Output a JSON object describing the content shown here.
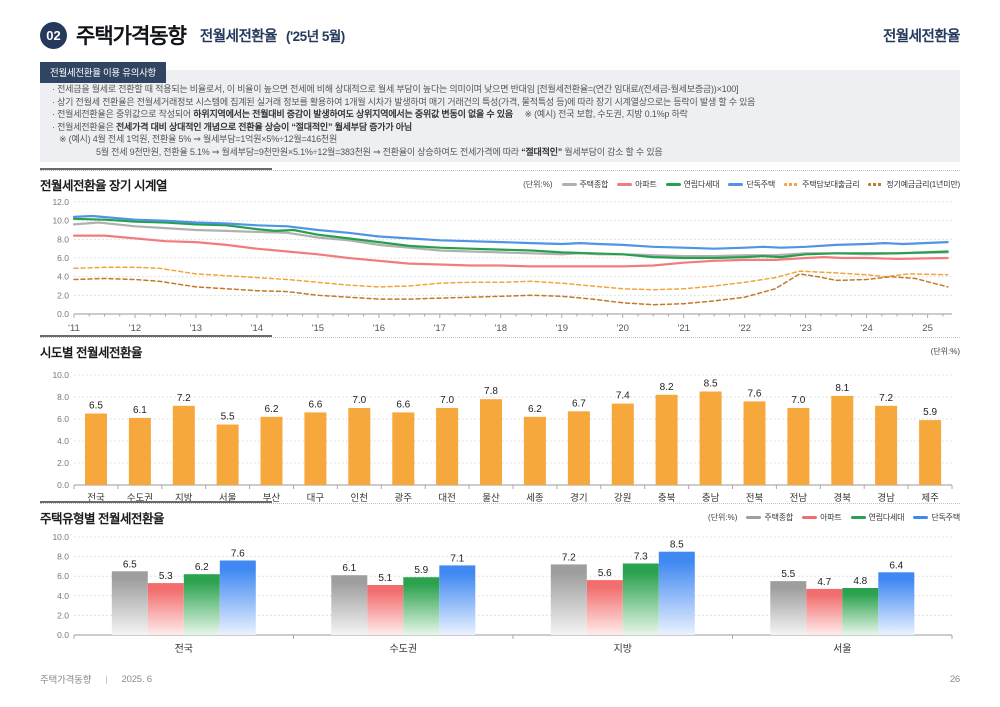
{
  "header": {
    "number": "02",
    "title": "주택가격동향",
    "subtitle": "전월세전환율",
    "period": "('25년 5월)",
    "right_title": "전월세전환율"
  },
  "notice": {
    "tab": "전월세전환율 이용 유의사항",
    "lines": [
      {
        "indent": 0,
        "segments": [
          {
            "t": "· 전세금을 월세로 전환할 때 적용되는 비율로서, 이 비율이 높으면 전세에 비해 상대적으로 월세 부담이 높다는 의미이며 낮으면 반대임 [전월세전환율=(연간 임대료/(전세금-월세보증금))×100]",
            "b": false
          }
        ]
      },
      {
        "indent": 0,
        "segments": [
          {
            "t": "· 상기 전월세 전환율은 전월세거래정보 시스템에 집계된 실거래 정보를 활용하여 1개월 시차가 발생하며 매기 거래건의 특성(가격, 물적특성 등)에 따라 장기 시계열상으로는 등락이 발생 할 수 있음",
            "b": false
          }
        ]
      },
      {
        "indent": 0,
        "segments": [
          {
            "t": "· 전월세전환율은 중위값으로 작성되어 ",
            "b": false
          },
          {
            "t": "하위지역에서는 전월대비 증감이 발생하여도 상위지역에서는 중위값 변동이 없을 수 있음",
            "b": true
          },
          {
            "t": "     ※ (예시) 전국 보합, 수도권, 지방 0.1%p 하락",
            "b": false
          }
        ]
      },
      {
        "indent": 0,
        "segments": [
          {
            "t": "· 전월세전환율은 ",
            "b": false
          },
          {
            "t": "전세가격 대비 상대적인 개념으로 전환율 상승이 “절대적인” 월세부담 증가가 아님",
            "b": true
          }
        ]
      },
      {
        "indent": 1,
        "segments": [
          {
            "t": "※ (예시) 4월 전세 1억원, 전환율 5% ⇒ 월세부담=1억원×5%÷12월=416천원",
            "b": false
          }
        ]
      },
      {
        "indent": 2,
        "segments": [
          {
            "t": "5월 전세 9천만원, 전환율 5.1% ⇒ 월세부담=9천만원×5.1%÷12월=383천원 ⇒ 전환율이 상승하여도 전세가격에 따라 ",
            "b": false
          },
          {
            "t": "“절대적인”",
            "b": true
          },
          {
            "t": " 월세부담이 감소 할 수 있음",
            "b": false
          }
        ]
      }
    ]
  },
  "chart_data": [
    {
      "type": "line",
      "title": "전월세전환율 장기 시계열",
      "unit_label": "(단위:%)",
      "ylim": [
        0,
        12
      ],
      "y_step": 2,
      "x_ticks": [
        "'11",
        "'12",
        "'13",
        "'14",
        "'15",
        "'16",
        "'17",
        "'18",
        "'19",
        "'20",
        "'21",
        "'22",
        "'23",
        "'24",
        "25"
      ],
      "series": [
        {
          "name": "주택종합",
          "color": "#b0b0b0",
          "style": "solid",
          "points": [
            [
              2011,
              9.6
            ],
            [
              2011.4,
              9.8
            ],
            [
              2012,
              9.4
            ],
            [
              2012.5,
              9.2
            ],
            [
              2013,
              9.0
            ],
            [
              2013.5,
              8.9
            ],
            [
              2014,
              8.8
            ],
            [
              2014.5,
              8.7
            ],
            [
              2015,
              8.2
            ],
            [
              2015.5,
              7.9
            ],
            [
              2016,
              7.4
            ],
            [
              2016.5,
              7.1
            ],
            [
              2017,
              6.8
            ],
            [
              2017.5,
              6.7
            ],
            [
              2018,
              6.6
            ],
            [
              2018.5,
              6.5
            ],
            [
              2019,
              6.4
            ],
            [
              2019.3,
              6.5
            ],
            [
              2019.6,
              6.4
            ],
            [
              2020,
              6.4
            ],
            [
              2020.5,
              6.3
            ],
            [
              2021,
              6.2
            ],
            [
              2021.5,
              6.2
            ],
            [
              2022,
              6.3
            ],
            [
              2022.5,
              6.3
            ],
            [
              2023,
              6.5
            ],
            [
              2023.5,
              6.5
            ],
            [
              2024,
              6.4
            ],
            [
              2024.5,
              6.5
            ],
            [
              2025.33,
              6.6
            ]
          ]
        },
        {
          "name": "아파트",
          "color": "#f27c7c",
          "style": "solid",
          "points": [
            [
              2011,
              8.4
            ],
            [
              2011.5,
              8.4
            ],
            [
              2012,
              8.1
            ],
            [
              2012.5,
              7.8
            ],
            [
              2013,
              7.7
            ],
            [
              2013.5,
              7.4
            ],
            [
              2014,
              7.0
            ],
            [
              2014.5,
              6.7
            ],
            [
              2015,
              6.4
            ],
            [
              2015.5,
              6.0
            ],
            [
              2016,
              5.7
            ],
            [
              2016.5,
              5.4
            ],
            [
              2017,
              5.3
            ],
            [
              2017.5,
              5.2
            ],
            [
              2018,
              5.2
            ],
            [
              2018.5,
              5.1
            ],
            [
              2019,
              5.1
            ],
            [
              2019.5,
              5.1
            ],
            [
              2020,
              5.1
            ],
            [
              2020.5,
              5.2
            ],
            [
              2021,
              5.5
            ],
            [
              2021.5,
              5.7
            ],
            [
              2022,
              5.8
            ],
            [
              2022.5,
              5.8
            ],
            [
              2023,
              6.0
            ],
            [
              2023.3,
              6.1
            ],
            [
              2023.6,
              6.0
            ],
            [
              2024,
              6.0
            ],
            [
              2024.5,
              5.9
            ],
            [
              2025.33,
              6.0
            ]
          ]
        },
        {
          "name": "연립다세대",
          "color": "#27a04e",
          "style": "solid",
          "points": [
            [
              2011,
              10.2
            ],
            [
              2011.5,
              10.1
            ],
            [
              2012,
              9.9
            ],
            [
              2012.5,
              9.8
            ],
            [
              2013,
              9.6
            ],
            [
              2013.5,
              9.5
            ],
            [
              2014,
              9.1
            ],
            [
              2014.3,
              8.9
            ],
            [
              2014.6,
              9.0
            ],
            [
              2015,
              8.5
            ],
            [
              2015.5,
              8.1
            ],
            [
              2016,
              7.7
            ],
            [
              2016.5,
              7.3
            ],
            [
              2017,
              7.1
            ],
            [
              2017.5,
              7.0
            ],
            [
              2018,
              6.9
            ],
            [
              2018.5,
              6.8
            ],
            [
              2019,
              6.6
            ],
            [
              2019.5,
              6.5
            ],
            [
              2020,
              6.4
            ],
            [
              2020.5,
              6.1
            ],
            [
              2021,
              6.0
            ],
            [
              2021.5,
              6.0
            ],
            [
              2022,
              6.1
            ],
            [
              2022.3,
              6.2
            ],
            [
              2022.6,
              6.1
            ],
            [
              2023,
              6.4
            ],
            [
              2023.5,
              6.5
            ],
            [
              2024,
              6.5
            ],
            [
              2024.5,
              6.5
            ],
            [
              2025.33,
              6.7
            ]
          ]
        },
        {
          "name": "단독주택",
          "color": "#4f94e5",
          "style": "solid",
          "points": [
            [
              2011,
              10.4
            ],
            [
              2011.3,
              10.5
            ],
            [
              2012,
              10.1
            ],
            [
              2012.5,
              10.0
            ],
            [
              2013,
              9.8
            ],
            [
              2013.5,
              9.7
            ],
            [
              2014,
              9.5
            ],
            [
              2014.5,
              9.4
            ],
            [
              2015,
              9.0
            ],
            [
              2015.5,
              8.7
            ],
            [
              2016,
              8.3
            ],
            [
              2016.5,
              8.1
            ],
            [
              2017,
              7.9
            ],
            [
              2017.5,
              7.8
            ],
            [
              2018,
              7.7
            ],
            [
              2018.5,
              7.6
            ],
            [
              2019,
              7.5
            ],
            [
              2019.3,
              7.6
            ],
            [
              2019.6,
              7.5
            ],
            [
              2020,
              7.4
            ],
            [
              2020.5,
              7.2
            ],
            [
              2021,
              7.1
            ],
            [
              2021.5,
              7.0
            ],
            [
              2022,
              7.1
            ],
            [
              2022.3,
              7.2
            ],
            [
              2022.6,
              7.1
            ],
            [
              2023,
              7.2
            ],
            [
              2023.5,
              7.4
            ],
            [
              2024,
              7.5
            ],
            [
              2024.3,
              7.6
            ],
            [
              2024.6,
              7.5
            ],
            [
              2025.33,
              7.7
            ]
          ]
        },
        {
          "name": "주택담보대출금리",
          "color": "#f2a53a",
          "style": "dashed",
          "points": [
            [
              2011,
              4.9
            ],
            [
              2011.5,
              5.0
            ],
            [
              2012,
              5.0
            ],
            [
              2012.4,
              4.9
            ],
            [
              2013,
              4.3
            ],
            [
              2013.5,
              4.1
            ],
            [
              2014,
              3.9
            ],
            [
              2014.5,
              3.7
            ],
            [
              2015,
              3.4
            ],
            [
              2015.5,
              3.1
            ],
            [
              2016,
              2.9
            ],
            [
              2016.5,
              3.0
            ],
            [
              2017,
              3.3
            ],
            [
              2017.5,
              3.4
            ],
            [
              2018,
              3.4
            ],
            [
              2018.5,
              3.5
            ],
            [
              2019,
              3.3
            ],
            [
              2019.5,
              3.0
            ],
            [
              2020,
              2.7
            ],
            [
              2020.5,
              2.6
            ],
            [
              2021,
              2.7
            ],
            [
              2021.5,
              3.0
            ],
            [
              2022,
              3.4
            ],
            [
              2022.5,
              3.9
            ],
            [
              2022.9,
              4.6
            ],
            [
              2023.2,
              4.5
            ],
            [
              2023.5,
              4.4
            ],
            [
              2024,
              4.2
            ],
            [
              2024.3,
              4.0
            ],
            [
              2024.7,
              4.3
            ],
            [
              2025.33,
              4.2
            ]
          ]
        },
        {
          "name": "정기예금금리(1년미만)",
          "color": "#c07a28",
          "style": "dashed",
          "points": [
            [
              2011,
              3.7
            ],
            [
              2011.5,
              3.8
            ],
            [
              2012,
              3.7
            ],
            [
              2012.4,
              3.5
            ],
            [
              2013,
              2.9
            ],
            [
              2013.5,
              2.7
            ],
            [
              2014,
              2.5
            ],
            [
              2014.5,
              2.4
            ],
            [
              2015,
              2.0
            ],
            [
              2015.5,
              1.8
            ],
            [
              2016,
              1.6
            ],
            [
              2016.5,
              1.6
            ],
            [
              2017,
              1.7
            ],
            [
              2017.5,
              1.8
            ],
            [
              2018,
              1.9
            ],
            [
              2018.5,
              2.0
            ],
            [
              2019,
              1.9
            ],
            [
              2019.5,
              1.6
            ],
            [
              2020,
              1.2
            ],
            [
              2020.5,
              1.0
            ],
            [
              2021,
              1.1
            ],
            [
              2021.5,
              1.4
            ],
            [
              2022,
              1.8
            ],
            [
              2022.5,
              2.7
            ],
            [
              2022.9,
              4.3
            ],
            [
              2023.2,
              4.0
            ],
            [
              2023.5,
              3.6
            ],
            [
              2024,
              3.7
            ],
            [
              2024.4,
              4.0
            ],
            [
              2024.8,
              3.8
            ],
            [
              2025.33,
              2.9
            ]
          ]
        }
      ]
    },
    {
      "type": "bar",
      "title": "시도별 전월세전환율",
      "unit_label": "(단위:%)",
      "ylim": [
        0,
        10
      ],
      "y_step": 2,
      "bar_color": "#f7a83c",
      "categories": [
        "전국",
        "수도권",
        "지방",
        "서울",
        "부산",
        "대구",
        "인천",
        "광주",
        "대전",
        "울산",
        "세종",
        "경기",
        "강원",
        "충북",
        "충남",
        "전북",
        "전남",
        "경북",
        "경남",
        "제주"
      ],
      "values": [
        6.5,
        6.1,
        7.2,
        5.5,
        6.2,
        6.6,
        7.0,
        6.6,
        7.0,
        7.8,
        6.2,
        6.7,
        7.4,
        8.2,
        8.5,
        7.6,
        7.0,
        8.1,
        7.2,
        5.9
      ]
    },
    {
      "type": "grouped-bar",
      "title": "주택유형별 전월세전환율",
      "unit_label": "(단위:%)",
      "ylim": [
        0,
        10
      ],
      "y_step": 2,
      "categories": [
        "전국",
        "수도권",
        "지방",
        "서울"
      ],
      "series": [
        {
          "name": "주택종합",
          "color": "#9e9e9e",
          "color_light": "#f4f4f4",
          "values": [
            6.5,
            6.1,
            7.2,
            5.5
          ]
        },
        {
          "name": "아파트",
          "color": "#f26d6d",
          "color_light": "#ffecec",
          "values": [
            5.3,
            5.1,
            5.6,
            4.7
          ]
        },
        {
          "name": "연립다세대",
          "color": "#2aa24e",
          "color_light": "#e7f6ea",
          "values": [
            6.2,
            5.9,
            7.3,
            4.8
          ]
        },
        {
          "name": "단독주택",
          "color": "#4189f2",
          "color_light": "#eaf2ff",
          "values": [
            7.6,
            7.1,
            8.5,
            6.4
          ]
        }
      ]
    }
  ],
  "footer": {
    "doc_title": "주택가격동향",
    "sep": "|",
    "date": "2025. 6",
    "page": "26"
  }
}
